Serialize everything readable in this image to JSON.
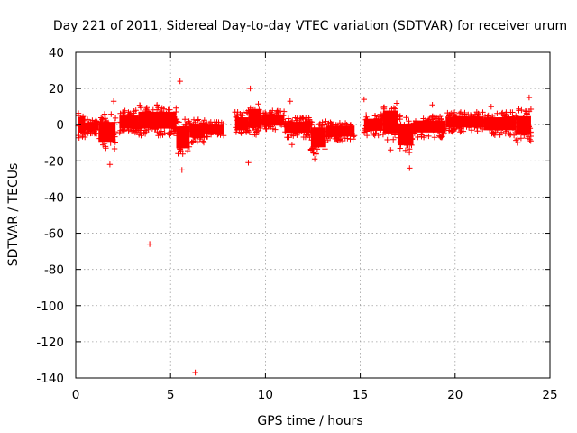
{
  "chart_data": {
    "type": "scatter",
    "title": "Day 221 of 2011, Sidereal Day-to-day VTEC variation (SDTVAR) for receiver urum",
    "xlabel": "GPS time / hours",
    "ylabel": "SDTVAR / TECUs",
    "xlim": [
      0,
      25
    ],
    "ylim": [
      -140,
      40
    ],
    "xticks": [
      0,
      5,
      10,
      15,
      20,
      25
    ],
    "yticks": [
      40,
      20,
      0,
      -20,
      -40,
      -60,
      -80,
      -100,
      -120,
      -140
    ],
    "grid": true,
    "marker": "+",
    "color": "#ff0000",
    "series": [
      {
        "name": "SDTVAR",
        "bands": [
          {
            "x0": 0.1,
            "x1": 0.5,
            "lo": -8,
            "hi": 8
          },
          {
            "x0": 0.5,
            "x1": 1.2,
            "lo": -5,
            "hi": 3
          },
          {
            "x0": 1.2,
            "x1": 2.1,
            "lo": -14,
            "hi": 6
          },
          {
            "x0": 2.3,
            "x1": 3.3,
            "lo": -5,
            "hi": 8
          },
          {
            "x0": 3.3,
            "x1": 5.3,
            "lo": -6,
            "hi": 11
          },
          {
            "x0": 5.3,
            "x1": 6.0,
            "lo": -18,
            "hi": 4
          },
          {
            "x0": 6.0,
            "x1": 6.8,
            "lo": -10,
            "hi": 3
          },
          {
            "x0": 6.8,
            "x1": 7.8,
            "lo": -7,
            "hi": 2
          },
          {
            "x0": 8.4,
            "x1": 9.1,
            "lo": -6,
            "hi": 7
          },
          {
            "x0": 9.1,
            "x1": 9.8,
            "lo": -6,
            "hi": 13
          },
          {
            "x0": 9.8,
            "x1": 11.0,
            "lo": -3,
            "hi": 8
          },
          {
            "x0": 11.0,
            "x1": 12.4,
            "lo": -7,
            "hi": 4
          },
          {
            "x0": 12.4,
            "x1": 13.2,
            "lo": -17,
            "hi": 3
          },
          {
            "x0": 13.2,
            "x1": 14.7,
            "lo": -9,
            "hi": 2
          },
          {
            "x0": 15.2,
            "x1": 16.2,
            "lo": -6,
            "hi": 6
          },
          {
            "x0": 16.2,
            "x1": 17.0,
            "lo": -10,
            "hi": 13
          },
          {
            "x0": 17.0,
            "x1": 17.8,
            "lo": -16,
            "hi": 5
          },
          {
            "x0": 17.8,
            "x1": 19.5,
            "lo": -7,
            "hi": 5
          },
          {
            "x0": 19.5,
            "x1": 21.5,
            "lo": -4,
            "hi": 7
          },
          {
            "x0": 21.5,
            "x1": 23.2,
            "lo": -6,
            "hi": 7
          },
          {
            "x0": 23.2,
            "x1": 24.0,
            "lo": -10,
            "hi": 9
          }
        ],
        "outliers": [
          {
            "x": 0.5,
            "y": -2
          },
          {
            "x": 1.8,
            "y": -22
          },
          {
            "x": 2.0,
            "y": 13
          },
          {
            "x": 3.9,
            "y": -66
          },
          {
            "x": 5.5,
            "y": 24
          },
          {
            "x": 5.6,
            "y": -25
          },
          {
            "x": 6.3,
            "y": -137
          },
          {
            "x": 9.2,
            "y": 20
          },
          {
            "x": 9.1,
            "y": -21
          },
          {
            "x": 11.3,
            "y": 13
          },
          {
            "x": 11.4,
            "y": -11
          },
          {
            "x": 12.6,
            "y": -19
          },
          {
            "x": 15.2,
            "y": 14
          },
          {
            "x": 17.6,
            "y": -24
          },
          {
            "x": 18.8,
            "y": 11
          },
          {
            "x": 16.6,
            "y": -14
          },
          {
            "x": 21.9,
            "y": 10
          },
          {
            "x": 23.3,
            "y": -10
          },
          {
            "x": 23.9,
            "y": 15
          },
          {
            "x": 8.4,
            "y": 7
          }
        ]
      }
    ]
  }
}
